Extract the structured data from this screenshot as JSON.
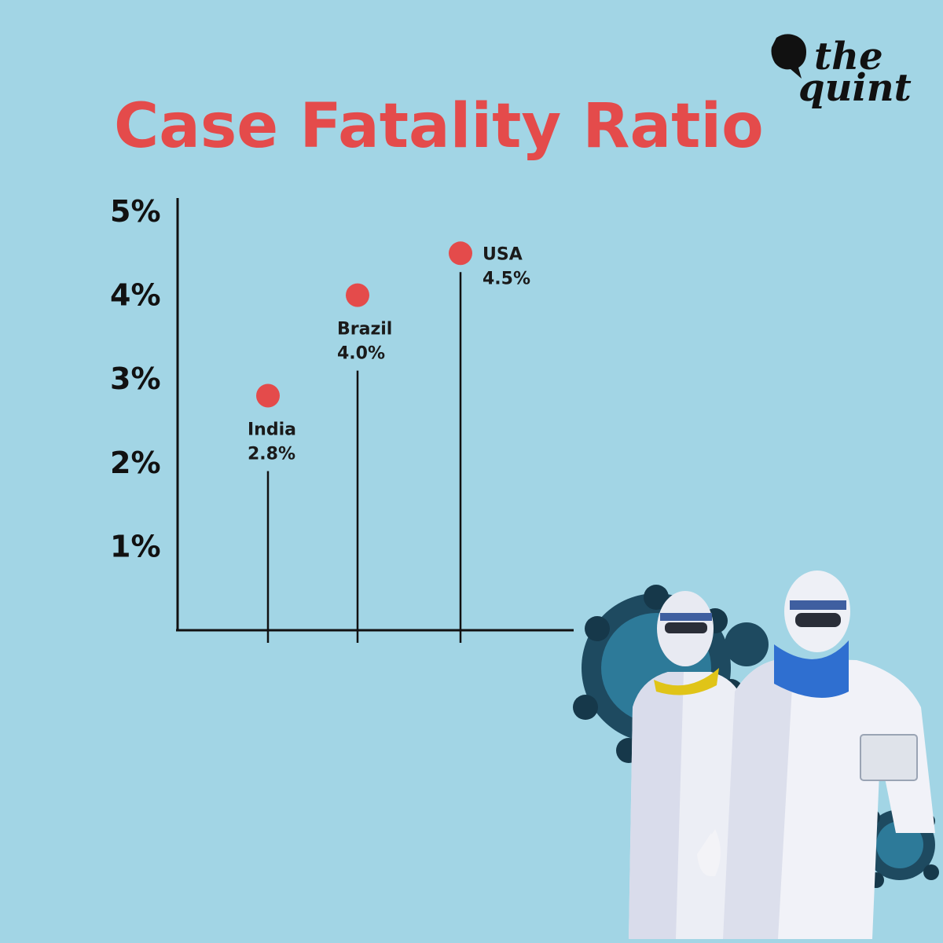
{
  "brand": {
    "line1": "the",
    "line2": "quint",
    "icon": "speech-bubble-icon"
  },
  "chart_data": {
    "type": "scatter",
    "title": "Case Fatality Ratio",
    "xlabel": "",
    "ylabel": "",
    "ylim": [
      0,
      5
    ],
    "yticks": [
      "1%",
      "2%",
      "3%",
      "4%",
      "5%"
    ],
    "grid": false,
    "colors": {
      "marker": "#e44b4b",
      "title": "#e44b4b",
      "axis": "#111111",
      "background": "#a2d5e5"
    },
    "series": [
      {
        "points": [
          {
            "category": "India",
            "value": 2.8,
            "value_label": "2.8%"
          },
          {
            "category": "Brazil",
            "value": 4.0,
            "value_label": "4.0%"
          },
          {
            "category": "USA",
            "value": 4.5,
            "value_label": "4.5%"
          }
        ]
      }
    ]
  },
  "illustration": {
    "subject": "health-workers-in-ppe-with-virus-graphic"
  }
}
